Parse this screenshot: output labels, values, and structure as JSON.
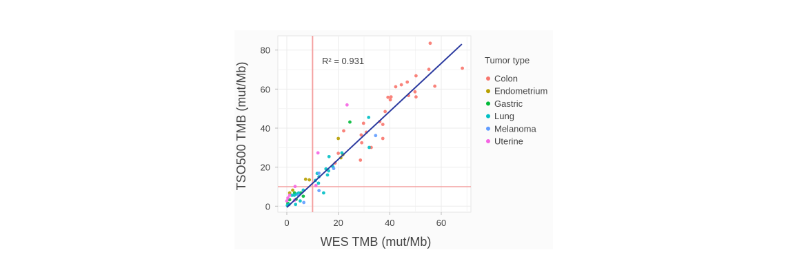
{
  "chart_data": {
    "type": "scatter",
    "xlabel": "WES TMB  (mut/Mb)",
    "ylabel": "TSO500 TMB  (mut/Mb)",
    "xlim": [
      -3.5,
      71.5
    ],
    "ylim": [
      -3,
      87
    ],
    "xticks": [
      0,
      20,
      40,
      60
    ],
    "yticks": [
      0,
      20,
      40,
      60,
      80
    ],
    "grid": true,
    "annotation": "R² = 0.931",
    "reference_lines": {
      "x": 10,
      "y": 10,
      "color": "#f4a0a0"
    },
    "fit_line": {
      "slope": 1.23,
      "intercept": -0.6,
      "x_range": [
        0,
        68
      ],
      "color": "#2b3a9f"
    },
    "legend": {
      "title": "Tumor type",
      "placement": "right"
    },
    "series": [
      {
        "name": "Colon",
        "color": "#F8766D",
        "points": [
          [
            55.7,
            83.5
          ],
          [
            68.2,
            70.7
          ],
          [
            55.2,
            70.1
          ],
          [
            50.2,
            66.8
          ],
          [
            44.5,
            62.2
          ],
          [
            42.3,
            61.2
          ],
          [
            46.8,
            63.6
          ],
          [
            57.5,
            61.5
          ],
          [
            49.8,
            58.6
          ],
          [
            50.2,
            56.0
          ],
          [
            47.3,
            56.7
          ],
          [
            39.3,
            55.8
          ],
          [
            40.5,
            56.0
          ],
          [
            40.2,
            54.5
          ],
          [
            38.2,
            48.5
          ],
          [
            36.1,
            43.3
          ],
          [
            37.3,
            41.9
          ],
          [
            37.3,
            34.7
          ],
          [
            30.9,
            37.9
          ],
          [
            29.8,
            42.5
          ],
          [
            28.9,
            36.5
          ],
          [
            29.1,
            32.5
          ],
          [
            32.8,
            30.1
          ],
          [
            28.6,
            23.6
          ],
          [
            22.1,
            38.6
          ],
          [
            20.0,
            27.1
          ],
          [
            18.75,
            22.1
          ]
        ]
      },
      {
        "name": "Endometrium",
        "color": "#B79F00",
        "points": [
          [
            20.0,
            34.7
          ],
          [
            21.0,
            24.8
          ],
          [
            21.8,
            26.4
          ],
          [
            7.3,
            13.8
          ],
          [
            8.75,
            13.5
          ],
          [
            2.3,
            8.2
          ],
          [
            1.1,
            6.8
          ]
        ]
      },
      {
        "name": "Gastric",
        "color": "#00BA38",
        "points": [
          [
            24.5,
            43.1
          ],
          [
            3.0,
            6.8
          ],
          [
            5.5,
            6.8
          ],
          [
            6.4,
            5.1
          ],
          [
            0.4,
            1.5
          ],
          [
            1.1,
            3.3
          ],
          [
            3.6,
            3.5
          ]
        ]
      },
      {
        "name": "Lung",
        "color": "#00BFC4",
        "points": [
          [
            31.8,
            45.5
          ],
          [
            32.0,
            30.1
          ],
          [
            16.4,
            25.4
          ],
          [
            21.4,
            27.3
          ],
          [
            11.8,
            16.8
          ],
          [
            12.5,
            15.1
          ],
          [
            11.1,
            13.2
          ],
          [
            15.2,
            19.1
          ],
          [
            16.25,
            18.1
          ],
          [
            15.8,
            16.0
          ],
          [
            17.9,
            20.2
          ],
          [
            12.3,
            11.8
          ],
          [
            14.3,
            6.8
          ],
          [
            6.4,
            8.2
          ],
          [
            4.6,
            6.8
          ],
          [
            2.9,
            5.6
          ],
          [
            5.2,
            2.7
          ],
          [
            3.4,
            0.9
          ],
          [
            0.2,
            0.4
          ],
          [
            0.9,
            0.9
          ],
          [
            2.0,
            5.6
          ],
          [
            3.75,
            6.2
          ]
        ]
      },
      {
        "name": "Melanoma",
        "color": "#619CFF",
        "points": [
          [
            34.5,
            36.2
          ],
          [
            18.2,
            19.3
          ],
          [
            12.5,
            8.0
          ],
          [
            6.6,
            1.9
          ],
          [
            12.5,
            16.9
          ],
          [
            4.6,
            5.6
          ]
        ]
      },
      {
        "name": "Uterine",
        "color": "#F564E3",
        "points": [
          [
            23.4,
            51.9
          ],
          [
            12.1,
            27.3
          ],
          [
            3.2,
            10.1
          ],
          [
            0.0,
            2.7
          ],
          [
            0.4,
            4.2
          ],
          [
            1.1,
            5.6
          ],
          [
            3.0,
            3.1
          ],
          [
            11.3,
            10.6
          ]
        ]
      }
    ]
  }
}
